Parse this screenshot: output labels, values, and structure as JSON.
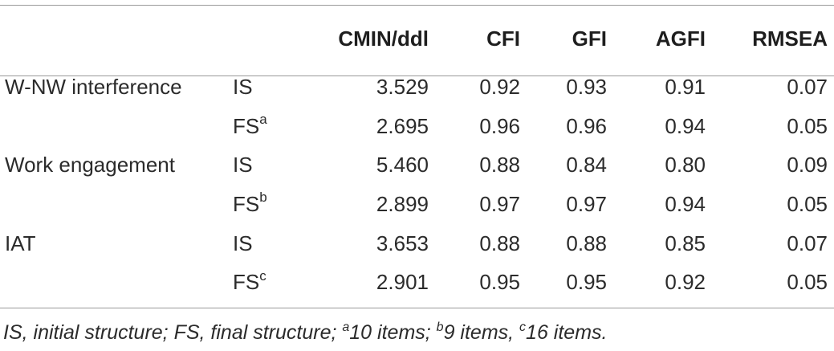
{
  "table": {
    "headers": {
      "group": "",
      "structure": "",
      "cmin": "CMIN/ddl",
      "cfi": "CFI",
      "gfi": "GFI",
      "agfi": "AGFI",
      "rmsea": "RMSEA"
    },
    "rows": [
      {
        "group": "W-NW interference",
        "structure": "IS",
        "sup": "",
        "cmin": "3.529",
        "cfi": "0.92",
        "gfi": "0.93",
        "agfi": "0.91",
        "rmsea": "0.07"
      },
      {
        "group": "",
        "structure": "FS",
        "sup": "a",
        "cmin": "2.695",
        "cfi": "0.96",
        "gfi": "0.96",
        "agfi": "0.94",
        "rmsea": "0.05"
      },
      {
        "group": "Work engagement",
        "structure": "IS",
        "sup": "",
        "cmin": "5.460",
        "cfi": "0.88",
        "gfi": "0.84",
        "agfi": "0.80",
        "rmsea": "0.09"
      },
      {
        "group": "",
        "structure": "FS",
        "sup": "b",
        "cmin": "2.899",
        "cfi": "0.97",
        "gfi": "0.97",
        "agfi": "0.94",
        "rmsea": "0.05"
      },
      {
        "group": "IAT",
        "structure": "IS",
        "sup": "",
        "cmin": "3.653",
        "cfi": "0.88",
        "gfi": "0.88",
        "agfi": "0.85",
        "rmsea": "0.07"
      },
      {
        "group": "",
        "structure": "FS",
        "sup": "c",
        "cmin": "2.901",
        "cfi": "0.95",
        "gfi": "0.95",
        "agfi": "0.92",
        "rmsea": "0.05"
      }
    ]
  },
  "footnote": {
    "part1": "IS, initial structure; FS, final structure; ",
    "sup_a": "a",
    "part2": "10 items; ",
    "sup_b": "b",
    "part3": "9 items, ",
    "sup_c": "c",
    "part4": "16 items."
  }
}
